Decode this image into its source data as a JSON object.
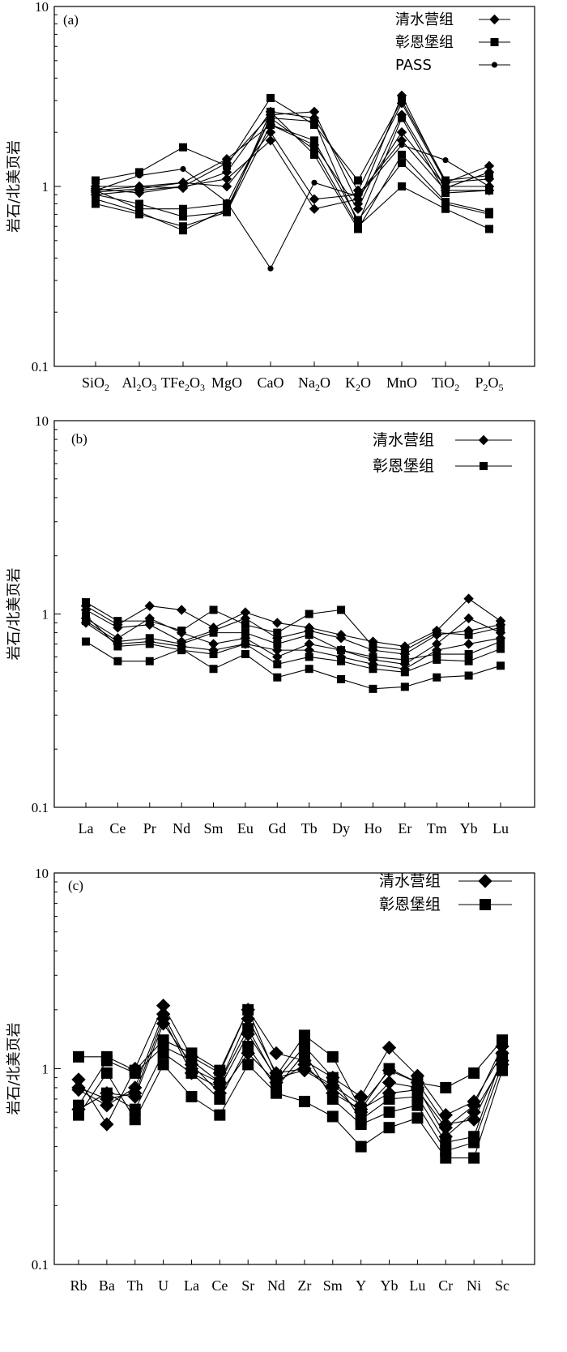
{
  "chart_data": [
    {
      "type": "line",
      "panel_label": "(a)",
      "ylabel": "岩石/北美页岩",
      "yscale": "log",
      "ylim": [
        0.1,
        10
      ],
      "y_tick_labels": [
        "0.1",
        "1",
        "10"
      ],
      "categories": [
        "SiO2",
        "Al2O3",
        "TFe2O3",
        "MgO",
        "CaO",
        "Na2O",
        "K2O",
        "MnO",
        "TiO2",
        "P2O5"
      ],
      "category_labels": [
        {
          "main": "SiO",
          "sub": "2"
        },
        {
          "main": "Al",
          "sub": "2",
          "main2": "O",
          "sub2": "3"
        },
        {
          "main": "TFe",
          "sub": "2",
          "main2": "O",
          "sub2": "3"
        },
        {
          "main": "MgO"
        },
        {
          "main": "CaO"
        },
        {
          "main": "Na",
          "sub": "2",
          "main2": "O"
        },
        {
          "main": "K",
          "sub": "2",
          "main2": "O"
        },
        {
          "main": "MnO"
        },
        {
          "main": "TiO",
          "sub": "2"
        },
        {
          "main": "P",
          "sub": "2",
          "main2": "O",
          "sub2": "5"
        }
      ],
      "legend": [
        {
          "label": "清水营组",
          "marker": "diamond"
        },
        {
          "label": "彰恩堡组",
          "marker": "square"
        },
        {
          "label": "PASS",
          "marker": "circle"
        }
      ],
      "legend_position": "top-right",
      "series": [
        {
          "group": "清水营组",
          "marker": "diamond",
          "values": [
            0.97,
            0.92,
            1.0,
            1.35,
            2.5,
            2.6,
            0.8,
            3.2,
            1.05,
            1.3
          ]
        },
        {
          "group": "清水营组",
          "marker": "diamond",
          "values": [
            0.93,
            0.97,
            1.05,
            1.42,
            2.2,
            1.7,
            0.75,
            2.5,
            0.98,
            1.2
          ]
        },
        {
          "group": "清水营组",
          "marker": "diamond",
          "values": [
            0.9,
            0.95,
            1.0,
            1.1,
            1.8,
            0.75,
            0.85,
            2.0,
            1.0,
            1.0
          ]
        },
        {
          "group": "清水营组",
          "marker": "diamond",
          "values": [
            1.0,
            1.0,
            1.05,
            1.0,
            2.0,
            0.85,
            0.9,
            1.8,
            0.95,
            0.95
          ]
        },
        {
          "group": "清水营组",
          "marker": "diamond",
          "values": [
            0.95,
            1.0,
            0.98,
            1.2,
            2.6,
            2.4,
            0.95,
            2.9,
            1.05,
            1.1
          ]
        },
        {
          "group": "彰恩堡组",
          "marker": "square",
          "values": [
            1.08,
            1.2,
            1.65,
            1.3,
            3.1,
            2.2,
            1.08,
            3.0,
            1.08,
            1.15
          ]
        },
        {
          "group": "彰恩堡组",
          "marker": "square",
          "values": [
            0.95,
            0.75,
            0.75,
            0.8,
            2.4,
            2.3,
            0.62,
            2.4,
            0.92,
            0.95
          ]
        },
        {
          "group": "彰恩堡组",
          "marker": "square",
          "values": [
            0.8,
            0.7,
            0.6,
            0.72,
            2.6,
            1.5,
            0.58,
            1.5,
            0.82,
            0.72
          ]
        },
        {
          "group": "彰恩堡组",
          "marker": "square",
          "values": [
            0.85,
            0.72,
            0.57,
            0.75,
            2.4,
            1.6,
            0.6,
            1.0,
            0.75,
            0.58
          ]
        },
        {
          "group": "彰恩堡组",
          "marker": "square",
          "values": [
            0.9,
            0.8,
            0.68,
            0.72,
            2.2,
            1.8,
            0.65,
            1.35,
            0.8,
            0.7
          ]
        },
        {
          "group": "PASS",
          "marker": "circle",
          "values": [
            0.95,
            1.15,
            1.25,
            0.82,
            0.35,
            1.05,
            0.88,
            1.7,
            1.4,
            1.0
          ]
        }
      ]
    },
    {
      "type": "line",
      "panel_label": "(b)",
      "ylabel": "岩石/北美页岩",
      "yscale": "log",
      "ylim": [
        0.1,
        10
      ],
      "y_tick_labels": [
        "0.1",
        "1",
        "10"
      ],
      "categories": [
        "La",
        "Ce",
        "Pr",
        "Nd",
        "Sm",
        "Eu",
        "Gd",
        "Tb",
        "Dy",
        "Ho",
        "Er",
        "Tm",
        "Yb",
        "Lu"
      ],
      "category_labels": [
        {
          "main": "La"
        },
        {
          "main": "Ce"
        },
        {
          "main": "Pr"
        },
        {
          "main": "Nd"
        },
        {
          "main": "Sm"
        },
        {
          "main": "Eu"
        },
        {
          "main": "Gd"
        },
        {
          "main": "Tb"
        },
        {
          "main": "Dy"
        },
        {
          "main": "Ho"
        },
        {
          "main": "Er"
        },
        {
          "main": "Tm"
        },
        {
          "main": "Yb"
        },
        {
          "main": "Lu"
        }
      ],
      "legend": [
        {
          "label": "清水营组",
          "marker": "diamond"
        },
        {
          "label": "彰恩堡组",
          "marker": "square"
        }
      ],
      "legend_position": "top-right",
      "series": [
        {
          "group": "清水营组",
          "marker": "diamond",
          "values": [
            1.1,
            0.88,
            1.1,
            1.05,
            0.85,
            1.02,
            0.9,
            0.85,
            0.78,
            0.72,
            0.68,
            0.82,
            1.2,
            0.92
          ]
        },
        {
          "group": "清水营组",
          "marker": "diamond",
          "values": [
            0.95,
            0.75,
            0.95,
            0.8,
            0.7,
            0.75,
            0.6,
            0.7,
            0.65,
            0.58,
            0.55,
            0.7,
            0.95,
            0.8
          ]
        },
        {
          "group": "清水营组",
          "marker": "diamond",
          "values": [
            1.05,
            0.85,
            0.88,
            0.72,
            0.82,
            0.95,
            0.75,
            0.82,
            0.75,
            0.65,
            0.62,
            0.78,
            0.82,
            0.88
          ]
        },
        {
          "group": "清水营组",
          "marker": "diamond",
          "values": [
            0.9,
            0.7,
            0.72,
            0.68,
            0.65,
            0.7,
            0.65,
            0.65,
            0.6,
            0.55,
            0.52,
            0.65,
            0.7,
            0.75
          ]
        },
        {
          "group": "彰恩堡组",
          "marker": "square",
          "values": [
            1.15,
            0.92,
            0.92,
            0.82,
            1.05,
            0.88,
            0.8,
            1.0,
            1.05,
            0.68,
            0.65,
            0.8,
            0.78,
            0.85
          ]
        },
        {
          "group": "彰恩堡组",
          "marker": "square",
          "values": [
            0.72,
            0.57,
            0.57,
            0.66,
            0.52,
            0.62,
            0.47,
            0.52,
            0.46,
            0.41,
            0.42,
            0.47,
            0.48,
            0.54
          ]
        },
        {
          "group": "彰恩堡组",
          "marker": "square",
          "values": [
            0.92,
            0.72,
            0.75,
            0.7,
            0.8,
            0.8,
            0.7,
            0.78,
            0.65,
            0.6,
            0.58,
            0.62,
            0.62,
            0.72
          ]
        },
        {
          "group": "彰恩堡组",
          "marker": "square",
          "values": [
            0.98,
            0.68,
            0.7,
            0.65,
            0.62,
            0.7,
            0.55,
            0.6,
            0.57,
            0.52,
            0.5,
            0.58,
            0.57,
            0.66
          ]
        }
      ]
    },
    {
      "type": "line",
      "panel_label": "(c)",
      "ylabel": "岩石/北美页岩",
      "yscale": "log",
      "ylim": [
        0.1,
        10
      ],
      "y_tick_labels": [
        "0.1",
        "1",
        "10"
      ],
      "categories": [
        "Rb",
        "Ba",
        "Th",
        "U",
        "La",
        "Ce",
        "Sr",
        "Nd",
        "Zr",
        "Sm",
        "Y",
        "Yb",
        "Lu",
        "Cr",
        "Ni",
        "Sc"
      ],
      "category_labels": [
        {
          "main": "Rb"
        },
        {
          "main": "Ba"
        },
        {
          "main": "Th"
        },
        {
          "main": "U"
        },
        {
          "main": "La"
        },
        {
          "main": "Ce"
        },
        {
          "main": "Sr"
        },
        {
          "main": "Nd"
        },
        {
          "main": "Zr"
        },
        {
          "main": "Sm"
        },
        {
          "main": "Y"
        },
        {
          "main": "Yb"
        },
        {
          "main": "Lu"
        },
        {
          "main": "Cr"
        },
        {
          "main": "Ni"
        },
        {
          "main": "Sc"
        }
      ],
      "legend": [
        {
          "label": "清水营组",
          "marker": "diamond"
        },
        {
          "label": "彰恩堡组",
          "marker": "square"
        }
      ],
      "legend_position": "top-right",
      "series": [
        {
          "group": "清水营组",
          "marker": "diamond",
          "values": [
            0.88,
            0.52,
            1.0,
            2.1,
            1.15,
            0.95,
            2.0,
            1.2,
            1.1,
            0.9,
            0.72,
            1.28,
            0.92,
            0.58,
            0.68,
            1.2
          ]
        },
        {
          "group": "清水营组",
          "marker": "diamond",
          "values": [
            0.78,
            0.65,
            0.8,
            1.9,
            1.0,
            0.85,
            1.8,
            0.95,
            1.0,
            0.82,
            0.65,
            0.98,
            0.85,
            0.52,
            0.55,
            1.1
          ]
        },
        {
          "group": "清水营组",
          "marker": "diamond",
          "values": [
            0.8,
            0.7,
            0.75,
            1.8,
            0.95,
            0.8,
            1.5,
            0.9,
            0.98,
            0.8,
            0.6,
            0.85,
            0.8,
            0.45,
            0.6,
            1.05
          ]
        },
        {
          "group": "清水营组",
          "marker": "diamond",
          "values": [
            0.62,
            0.75,
            0.72,
            1.7,
            1.05,
            0.75,
            1.2,
            0.85,
            1.05,
            0.75,
            0.62,
            0.75,
            0.78,
            0.5,
            0.65,
            1.3
          ]
        },
        {
          "group": "彰恩堡组",
          "marker": "square",
          "values": [
            1.15,
            1.15,
            0.98,
            1.4,
            1.2,
            0.98,
            2.0,
            0.92,
            1.48,
            1.15,
            0.62,
            1.0,
            0.85,
            0.8,
            0.95,
            1.4
          ]
        },
        {
          "group": "彰恩堡组",
          "marker": "square",
          "values": [
            0.58,
            0.95,
            0.55,
            1.05,
            0.72,
            0.58,
            1.05,
            0.75,
            0.68,
            0.57,
            0.4,
            0.5,
            0.56,
            0.35,
            0.35,
            0.98
          ]
        },
        {
          "group": "彰恩堡组",
          "marker": "square",
          "values": [
            0.62,
            0.75,
            0.62,
            1.2,
            0.95,
            0.7,
            1.3,
            0.8,
            1.2,
            0.7,
            0.52,
            0.6,
            0.65,
            0.38,
            0.42,
            1.05
          ]
        },
        {
          "group": "彰恩堡组",
          "marker": "square",
          "values": [
            0.65,
            1.1,
            0.95,
            1.3,
            1.1,
            0.85,
            1.6,
            0.88,
            1.3,
            0.9,
            0.55,
            0.7,
            0.72,
            0.42,
            0.45,
            1.15
          ]
        }
      ]
    }
  ]
}
